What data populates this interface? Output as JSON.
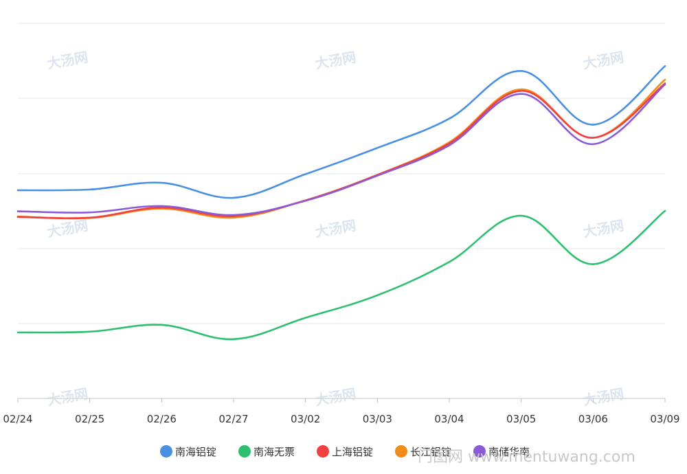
{
  "chart_data": {
    "type": "line",
    "title": "",
    "xlabel": "",
    "ylabel": "",
    "categories": [
      "02/24",
      "02/25",
      "02/26",
      "02/27",
      "03/02",
      "03/03",
      "03/04",
      "03/05",
      "03/06",
      "03/09"
    ],
    "ylim": [
      0,
      100
    ],
    "grid": true,
    "legend_position": "bottom",
    "series": [
      {
        "name": "南海铝锭",
        "color": "#4a90e2",
        "values": [
          55.5,
          55.7,
          57.5,
          53.5,
          59.8,
          66.8,
          74.6,
          87.3,
          73.0,
          88.6
        ]
      },
      {
        "name": "南海无票",
        "color": "#2cbf6e",
        "values": [
          17.6,
          17.8,
          19.6,
          15.8,
          21.5,
          27.5,
          36.4,
          48.7,
          35.8,
          50.0
        ]
      },
      {
        "name": "上海铝锭",
        "color": "#f04040",
        "values": [
          48.4,
          48.2,
          50.9,
          48.6,
          52.8,
          59.6,
          68.0,
          82.0,
          69.5,
          84.0
        ]
      },
      {
        "name": "长江铝锭",
        "color": "#f08c1a",
        "values": [
          48.5,
          48.1,
          50.6,
          48.2,
          52.8,
          59.6,
          68.3,
          82.4,
          69.5,
          85.0
        ]
      },
      {
        "name": "南储华南",
        "color": "#8a5bd6",
        "values": [
          49.9,
          49.6,
          51.3,
          48.9,
          52.7,
          59.4,
          67.5,
          81.2,
          67.8,
          83.7
        ]
      }
    ]
  },
  "watermark": {
    "brand": "大汤网",
    "site": "门图网 www.mentuwang.com"
  }
}
